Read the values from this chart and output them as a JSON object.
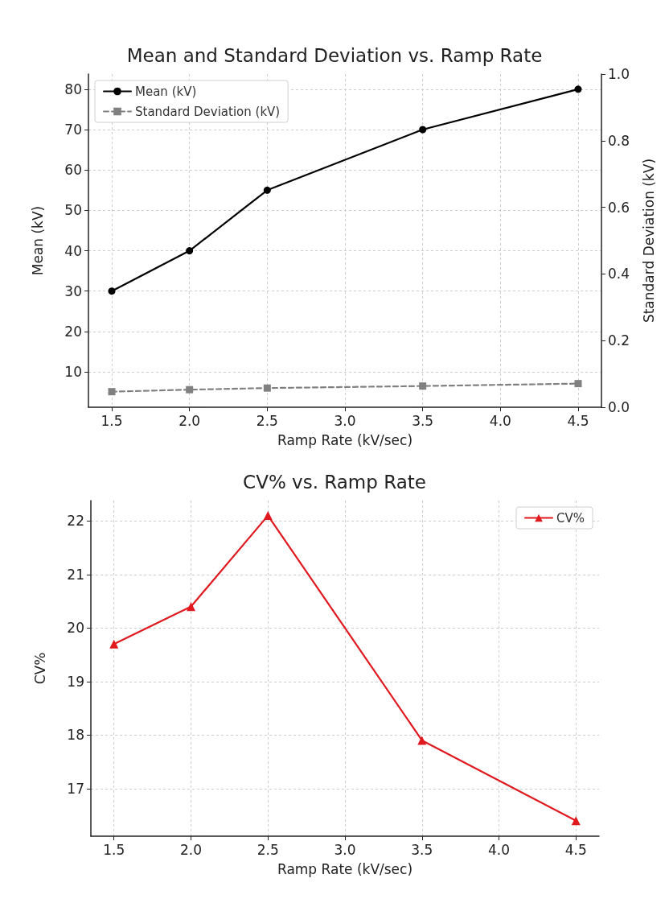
{
  "chart_data": [
    {
      "type": "line",
      "title": "Mean and Standard Deviation vs. Ramp Rate",
      "xlabel": "Ramp Rate (kV/sec)",
      "ylabel": "Mean (kV)",
      "y2label": "Standard Deviation (kV)",
      "x": [
        1.5,
        2.0,
        2.5,
        3.5,
        4.5
      ],
      "series": [
        {
          "name": "Mean (kV)",
          "color": "#000000",
          "values": [
            30,
            40,
            55,
            70,
            80
          ],
          "marker": "circle",
          "line_style": "solid"
        },
        {
          "name": "Standard Deviation (kV)",
          "color": "#808080",
          "values": [
            5.1,
            5.6,
            6.0,
            6.5,
            7.1
          ],
          "marker": "square",
          "line_style": "dashed"
        }
      ],
      "xlim": [
        1.35,
        4.65
      ],
      "xticks": [
        1.5,
        {
          "value": 2,
          "label": "2.0"
        },
        2.5,
        {
          "value": 3,
          "label": "3.0"
        },
        3.5,
        {
          "value": 4,
          "label": "4.0"
        },
        4.5
      ],
      "ylim": [
        1.25,
        83.75
      ],
      "yticks": [
        10,
        20,
        30,
        40,
        50,
        60,
        70,
        80
      ],
      "y2lim": [
        0,
        1
      ],
      "y2ticks": [
        {
          "value": 0,
          "label": "0.0"
        },
        0.2,
        0.4,
        0.6,
        0.8,
        {
          "value": 1,
          "label": "1.0"
        }
      ],
      "grid": true,
      "legend": "top left"
    },
    {
      "type": "line",
      "title": "CV% vs. Ramp Rate",
      "xlabel": "Ramp Rate (kV/sec)",
      "ylabel": "CV%",
      "x": [
        1.5,
        2.0,
        2.5,
        3.5,
        4.5
      ],
      "series": [
        {
          "name": "CV%",
          "color": "#e0191f",
          "values": [
            19.7,
            20.4,
            22.1,
            17.9,
            16.4
          ],
          "marker": "triangle",
          "line_style": "solid"
        }
      ],
      "xlim": [
        1.35,
        4.65
      ],
      "xticks": [
        1.5,
        {
          "value": 2,
          "label": "2.0"
        },
        2.5,
        {
          "value": 3,
          "label": "3.0"
        },
        3.5,
        {
          "value": 4,
          "label": "4.0"
        },
        4.5
      ],
      "ylim": [
        16.11,
        22.38
      ],
      "yticks": [
        17,
        18,
        19,
        20,
        21,
        22
      ],
      "grid": true,
      "legend": "top right"
    }
  ]
}
